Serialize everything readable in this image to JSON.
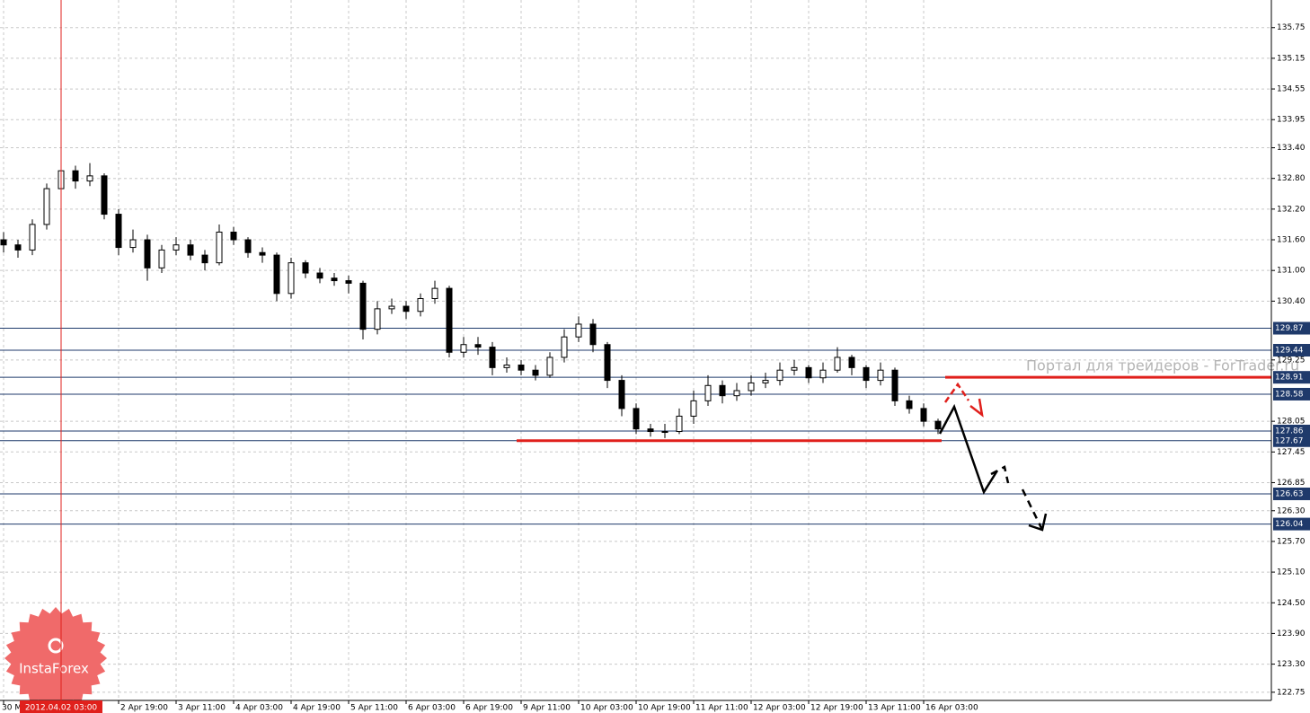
{
  "chart_data": {
    "type": "candlestick",
    "categories": [
      "30 M",
      null,
      null,
      null,
      "2012.04.02 03:00",
      null,
      null,
      null,
      "2 Apr 19:00",
      null,
      null,
      null,
      "3 Apr 11:00",
      null,
      null,
      null,
      "4 Apr 03:00",
      null,
      null,
      null,
      "4 Apr 19:00",
      null,
      null,
      null,
      "5 Apr 11:00",
      null,
      null,
      null,
      "6 Apr 03:00",
      null,
      null,
      null,
      "6 Apr 19:00",
      null,
      null,
      null,
      "9 Apr 11:00",
      null,
      null,
      null,
      "10 Apr 03:00",
      null,
      null,
      null,
      "10 Apr 19:00",
      null,
      null,
      null,
      "11 Apr 11:00",
      null,
      null,
      null,
      "12 Apr 03:00",
      null,
      null,
      null,
      "12 Apr 19:00",
      null,
      null,
      null,
      "13 Apr 11:00",
      null,
      null,
      null,
      "16 Apr 03:00",
      null
    ],
    "open": [
      131.6,
      131.5,
      131.4,
      131.9,
      132.6,
      132.95,
      132.75,
      132.85,
      132.1,
      131.45,
      131.6,
      131.05,
      131.4,
      131.5,
      131.3,
      131.15,
      131.75,
      131.6,
      131.35,
      131.3,
      130.55,
      131.15,
      130.95,
      130.85,
      130.8,
      130.75,
      129.85,
      130.25,
      130.3,
      130.2,
      130.45,
      130.65,
      129.4,
      129.55,
      129.5,
      129.1,
      129.15,
      129.05,
      128.95,
      129.3,
      129.7,
      129.95,
      129.55,
      128.85,
      128.3,
      127.9,
      127.85,
      127.85,
      128.15,
      128.45,
      128.75,
      128.55,
      128.65,
      128.8,
      128.85,
      129.05,
      129.1,
      128.9,
      129.05,
      129.3,
      129.1,
      128.85,
      129.05,
      128.45,
      128.3,
      128.05
    ],
    "high": [
      131.75,
      131.6,
      132.0,
      132.7,
      133.15,
      133.05,
      133.1,
      132.9,
      132.2,
      131.8,
      131.7,
      131.5,
      131.65,
      131.6,
      131.4,
      131.9,
      131.85,
      131.65,
      131.45,
      131.35,
      131.25,
      131.2,
      131.05,
      130.95,
      130.9,
      130.8,
      130.4,
      130.45,
      130.4,
      130.55,
      130.8,
      130.7,
      129.7,
      129.7,
      129.6,
      129.3,
      129.25,
      129.15,
      129.4,
      129.85,
      130.1,
      130.05,
      129.6,
      128.95,
      128.4,
      128.0,
      128.0,
      128.3,
      128.65,
      128.95,
      128.85,
      128.8,
      128.95,
      129.0,
      129.2,
      129.25,
      129.15,
      129.2,
      129.5,
      129.35,
      129.15,
      129.2,
      129.1,
      128.55,
      128.4,
      128.1
    ],
    "low": [
      131.35,
      131.25,
      131.3,
      131.8,
      132.5,
      132.6,
      132.65,
      132.0,
      131.3,
      131.35,
      130.8,
      130.95,
      131.3,
      131.2,
      131.0,
      131.1,
      131.5,
      131.25,
      131.15,
      130.4,
      130.45,
      130.85,
      130.75,
      130.7,
      130.55,
      129.65,
      129.75,
      130.15,
      130.05,
      130.1,
      130.35,
      129.3,
      129.3,
      129.35,
      128.95,
      129.0,
      128.95,
      128.85,
      128.9,
      129.2,
      129.6,
      129.4,
      128.7,
      128.15,
      127.8,
      127.75,
      127.72,
      127.8,
      128.0,
      128.35,
      128.4,
      128.45,
      128.55,
      128.7,
      128.75,
      128.95,
      128.8,
      128.8,
      129.0,
      128.95,
      128.7,
      128.75,
      128.35,
      128.2,
      127.95,
      127.8
    ],
    "close": [
      131.5,
      131.4,
      131.9,
      132.6,
      132.95,
      132.75,
      132.85,
      132.1,
      131.45,
      131.6,
      131.05,
      131.4,
      131.5,
      131.3,
      131.15,
      131.75,
      131.6,
      131.35,
      131.3,
      130.55,
      131.15,
      130.95,
      130.85,
      130.8,
      130.75,
      129.85,
      130.25,
      130.3,
      130.2,
      130.45,
      130.65,
      129.4,
      129.55,
      129.5,
      129.1,
      129.15,
      129.05,
      128.95,
      129.3,
      129.7,
      129.95,
      129.55,
      128.85,
      128.3,
      127.9,
      127.85,
      127.85,
      128.15,
      128.45,
      128.75,
      128.55,
      128.65,
      128.8,
      128.85,
      129.05,
      129.1,
      128.9,
      129.05,
      129.3,
      129.1,
      128.85,
      129.05,
      128.45,
      128.3,
      128.05,
      127.9
    ],
    "color": "#000000",
    "ylim": [
      122.59,
      136.29
    ],
    "yticks": [
      135.75,
      135.15,
      134.55,
      133.95,
      {
        "value": 133.4,
        "label": "133.40"
      },
      {
        "value": 132.8,
        "label": "132.80"
      },
      {
        "value": 132.2,
        "label": "132.20"
      },
      {
        "value": 131.6,
        "label": "131.60"
      },
      {
        "value": 131.0,
        "label": "131.00"
      },
      {
        "value": 130.4,
        "label": "130.40"
      },
      129.25,
      128.05,
      127.45,
      126.85,
      {
        "value": 126.3,
        "label": "126.30"
      },
      {
        "value": 125.7,
        "label": "125.70"
      },
      {
        "value": 125.1,
        "label": "125.10"
      },
      {
        "value": 124.5,
        "label": "124.50"
      },
      {
        "value": 123.9,
        "label": "123.90"
      },
      {
        "value": 123.3,
        "label": "123.30"
      },
      122.75
    ],
    "levels": [
      129.87,
      129.44,
      128.91,
      128.58,
      127.86,
      127.67,
      126.63,
      126.04
    ],
    "level_color": "#1f3a6b",
    "support_level": 127.67,
    "resistance_level": 128.91,
    "marker_color": "#e0201c",
    "grid": true,
    "watermark": "Портал для трейдеров - ForTrader.ru",
    "logo": "InstaForex"
  }
}
